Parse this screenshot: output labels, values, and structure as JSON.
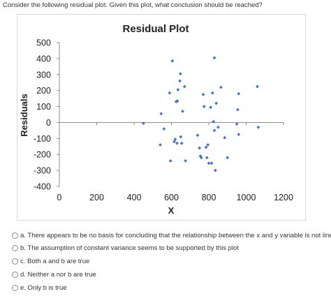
{
  "question": {
    "text": "Consider the following residual plot. Given this plot, what conclusion should be reached?"
  },
  "chart_data": {
    "type": "scatter",
    "title": "Residual Plot",
    "xlabel": "X",
    "ylabel": "Residuals",
    "xlim": [
      0,
      1200
    ],
    "ylim": [
      -400,
      500
    ],
    "x_ticks": [
      "0",
      "200",
      "400",
      "600",
      "800",
      "1000",
      "1200"
    ],
    "y_ticks": [
      "500",
      "400",
      "300",
      "200",
      "100",
      "0",
      "-100",
      "-200",
      "-300",
      "-400"
    ],
    "grid": false,
    "marker_color": "#4472c4",
    "points": [
      {
        "x": 450,
        "y": -5
      },
      {
        "x": 540,
        "y": -140
      },
      {
        "x": 545,
        "y": 55
      },
      {
        "x": 560,
        "y": -40
      },
      {
        "x": 590,
        "y": 185
      },
      {
        "x": 595,
        "y": -240
      },
      {
        "x": 605,
        "y": 385
      },
      {
        "x": 615,
        "y": -120
      },
      {
        "x": 620,
        "y": -105
      },
      {
        "x": 625,
        "y": 130
      },
      {
        "x": 630,
        "y": -130
      },
      {
        "x": 632,
        "y": 135
      },
      {
        "x": 635,
        "y": 205
      },
      {
        "x": 645,
        "y": 260
      },
      {
        "x": 648,
        "y": 305
      },
      {
        "x": 650,
        "y": -90
      },
      {
        "x": 655,
        "y": -130
      },
      {
        "x": 660,
        "y": 70
      },
      {
        "x": 670,
        "y": 225
      },
      {
        "x": 675,
        "y": -240
      },
      {
        "x": 740,
        "y": -80
      },
      {
        "x": 750,
        "y": -160
      },
      {
        "x": 755,
        "y": -210
      },
      {
        "x": 760,
        "y": -220
      },
      {
        "x": 770,
        "y": 175
      },
      {
        "x": 775,
        "y": 100
      },
      {
        "x": 785,
        "y": -155
      },
      {
        "x": 790,
        "y": -220
      },
      {
        "x": 795,
        "y": -140
      },
      {
        "x": 800,
        "y": -255
      },
      {
        "x": 810,
        "y": 95
      },
      {
        "x": 815,
        "y": -255
      },
      {
        "x": 820,
        "y": 185
      },
      {
        "x": 825,
        "y": 5
      },
      {
        "x": 830,
        "y": 405
      },
      {
        "x": 830,
        "y": -50
      },
      {
        "x": 835,
        "y": -300
      },
      {
        "x": 840,
        "y": 120
      },
      {
        "x": 850,
        "y": -30
      },
      {
        "x": 865,
        "y": 220
      },
      {
        "x": 885,
        "y": -95
      },
      {
        "x": 900,
        "y": -220
      },
      {
        "x": 950,
        "y": -10
      },
      {
        "x": 955,
        "y": 80
      },
      {
        "x": 960,
        "y": 180
      },
      {
        "x": 960,
        "y": -75
      },
      {
        "x": 1060,
        "y": 225
      },
      {
        "x": 1065,
        "y": -30
      }
    ]
  },
  "options": [
    {
      "label": "a. There appears to be no basis for concluding that the relationship between the x and y variable is not linear"
    },
    {
      "label": "b. The assumption of constant variance seems to be supported by this plot"
    },
    {
      "label": "c. Both a and b are true"
    },
    {
      "label": "d. Neither a nor b are true"
    },
    {
      "label": "e. Only b is true"
    }
  ]
}
